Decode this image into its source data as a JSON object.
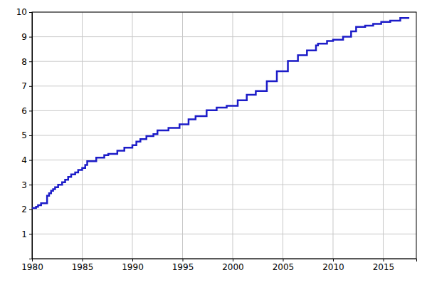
{
  "chart_data": {
    "type": "line",
    "line_style": "step",
    "grid": true,
    "color": "#1c1cc8",
    "x": [
      1980.0,
      1980.4,
      1980.6,
      1980.9,
      1981.5,
      1981.7,
      1981.9,
      1982.1,
      1982.3,
      1982.6,
      1983.0,
      1983.3,
      1983.6,
      1983.9,
      1984.3,
      1984.6,
      1985.0,
      1985.3,
      1985.5,
      1986.4,
      1987.2,
      1987.6,
      1988.5,
      1989.2,
      1990.0,
      1990.4,
      1990.8,
      1991.4,
      1992.1,
      1992.5,
      1993.6,
      1994.7,
      1995.6,
      1996.3,
      1997.4,
      1998.4,
      1999.4,
      2000.5,
      2001.4,
      2002.3,
      2003.4,
      2004.4,
      2005.5,
      2006.5,
      2007.4,
      2008.3,
      2008.5,
      2009.4,
      2010.0,
      2011.0,
      2011.8,
      2012.3,
      2013.2,
      2014.0,
      2014.8,
      2015.7,
      2016.7,
      2017.6
    ],
    "values": [
      2.05,
      2.1,
      2.17,
      2.25,
      2.55,
      2.65,
      2.75,
      2.82,
      2.9,
      3.0,
      3.1,
      3.2,
      3.32,
      3.42,
      3.5,
      3.6,
      3.68,
      3.8,
      3.95,
      4.1,
      4.2,
      4.25,
      4.38,
      4.5,
      4.6,
      4.75,
      4.85,
      4.97,
      5.05,
      5.2,
      5.3,
      5.45,
      5.65,
      5.78,
      6.02,
      6.13,
      6.2,
      6.42,
      6.65,
      6.8,
      7.2,
      7.6,
      8.02,
      8.25,
      8.45,
      8.65,
      8.72,
      8.83,
      8.88,
      9.0,
      9.22,
      9.4,
      9.45,
      9.52,
      9.6,
      9.65,
      9.76,
      9.76
    ],
    "xlim": [
      1980,
      2018.3
    ],
    "xticks": [
      1980,
      1985,
      1990,
      1995,
      2000,
      2005,
      2010,
      2015
    ],
    "ylim": [
      0,
      10
    ],
    "yticks": [
      1,
      2,
      3,
      4,
      5,
      6,
      7,
      8,
      9,
      10
    ]
  }
}
